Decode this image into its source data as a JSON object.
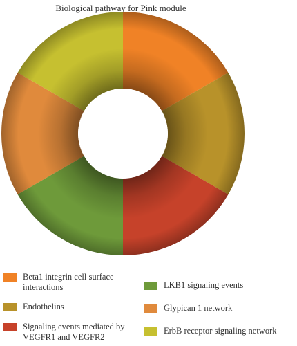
{
  "chart_data": {
    "type": "pie",
    "donut": true,
    "title": "Biological pathway for Pink module",
    "slices": [
      {
        "label": "Glypican 1 network",
        "value": 1,
        "color": "#e08a3c"
      },
      {
        "label": "ErbB receptor signaling network",
        "value": 1,
        "color": "#c6c030"
      },
      {
        "label": "Beta1 integrin cell surface interactions",
        "value": 1,
        "color": "#f08226"
      },
      {
        "label": "Endothelins",
        "value": 1,
        "color": "#b8922a"
      },
      {
        "label": "Signaling events mediated by VEGFR1 and VEGFR2",
        "value": 1,
        "color": "#c6422a"
      },
      {
        "label": "LKB1 signaling events",
        "value": 1,
        "color": "#6e9a3a"
      }
    ],
    "legend": {
      "position": "bottom",
      "columns": [
        [
          "Beta1 integrin cell surface interactions",
          "Endothelins",
          "Signaling events mediated by VEGFR1 and VEGFR2"
        ],
        [
          "LKB1 signaling events",
          "Glypican 1 network",
          "ErbB receptor signaling network"
        ]
      ]
    }
  }
}
